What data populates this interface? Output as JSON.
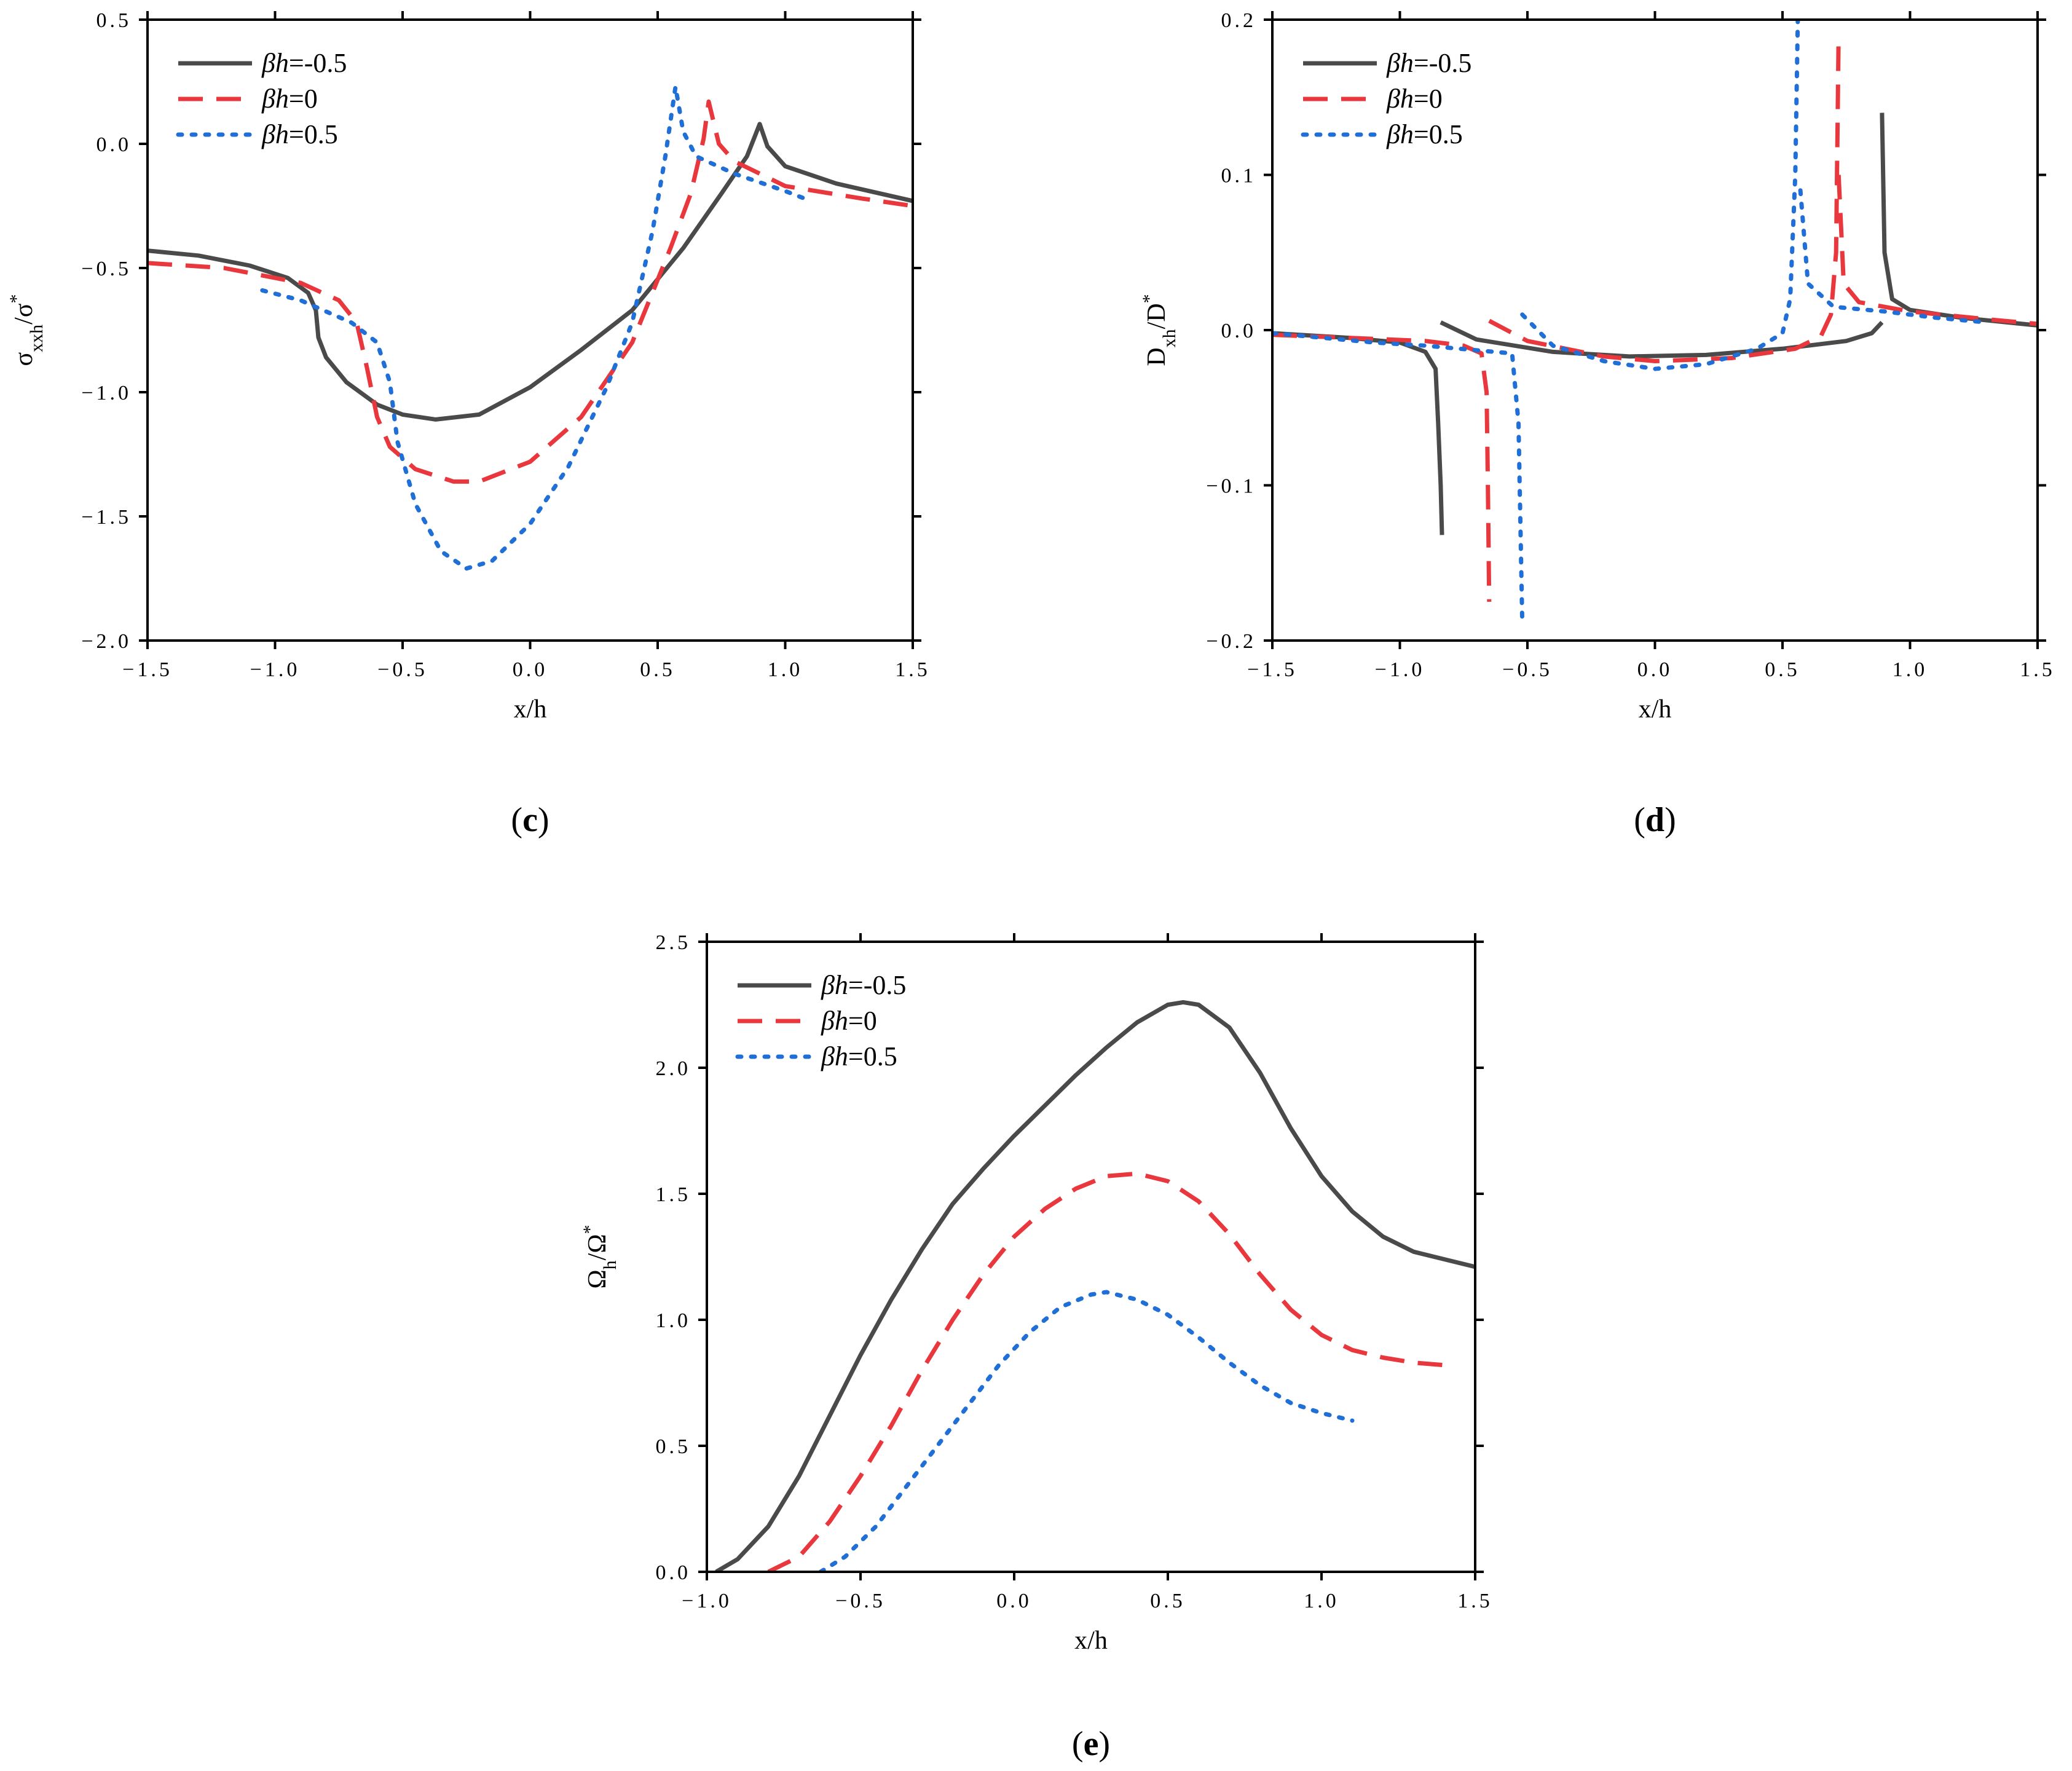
{
  "legend_labels": [
    "βh=-0.5",
    "βh=0",
    "βh=0.5"
  ],
  "colors": {
    "solid": "#4a4a4a",
    "dash": "#e8373d",
    "dot": "#1f6fd6"
  },
  "chart_data": [
    {
      "id": "c",
      "panel_label": "(c)",
      "type": "line",
      "xlabel": "x/h",
      "ylabel": "σxxh/σ*",
      "xlim": [
        -1.5,
        1.5
      ],
      "ylim": [
        -2.0,
        0.5
      ],
      "xticks": [
        -1.5,
        -1.0,
        -0.5,
        0.0,
        0.5,
        1.0,
        1.5
      ],
      "yticks": [
        -2.0,
        -1.5,
        -1.0,
        -0.5,
        0.0,
        0.5
      ],
      "xtick_labels": [
        "−1.5",
        "−1.0",
        "−0.5",
        "0.0",
        "0.5",
        "1.0",
        "1.5"
      ],
      "ytick_labels": [
        "−2.0",
        "−1.5",
        "−1.0",
        "−0.5",
        "0.0",
        "0.5"
      ],
      "series": [
        {
          "name": "βh=-0.5",
          "style": "solid",
          "points": [
            [
              -1.5,
              -0.43
            ],
            [
              -1.3,
              -0.45
            ],
            [
              -1.1,
              -0.49
            ],
            [
              -0.95,
              -0.54
            ],
            [
              -0.87,
              -0.6
            ],
            [
              -0.84,
              -0.67
            ],
            [
              -0.83,
              -0.78
            ],
            [
              -0.8,
              -0.86
            ],
            [
              -0.72,
              -0.96
            ],
            [
              -0.6,
              -1.05
            ],
            [
              -0.5,
              -1.09
            ],
            [
              -0.37,
              -1.11
            ],
            [
              -0.2,
              -1.09
            ],
            [
              0.0,
              -0.98
            ],
            [
              0.2,
              -0.83
            ],
            [
              0.4,
              -0.67
            ],
            [
              0.6,
              -0.42
            ],
            [
              0.75,
              -0.2
            ],
            [
              0.85,
              -0.05
            ],
            [
              0.9,
              0.08
            ],
            [
              0.93,
              -0.01
            ],
            [
              1.0,
              -0.09
            ],
            [
              1.2,
              -0.16
            ],
            [
              1.5,
              -0.23
            ]
          ]
        },
        {
          "name": "βh=0",
          "style": "dash",
          "points": [
            [
              -1.5,
              -0.48
            ],
            [
              -1.2,
              -0.5
            ],
            [
              -0.9,
              -0.56
            ],
            [
              -0.75,
              -0.63
            ],
            [
              -0.68,
              -0.72
            ],
            [
              -0.64,
              -0.9
            ],
            [
              -0.6,
              -1.1
            ],
            [
              -0.55,
              -1.22
            ],
            [
              -0.45,
              -1.31
            ],
            [
              -0.3,
              -1.36
            ],
            [
              -0.2,
              -1.36
            ],
            [
              0.0,
              -1.28
            ],
            [
              0.2,
              -1.1
            ],
            [
              0.4,
              -0.8
            ],
            [
              0.55,
              -0.42
            ],
            [
              0.63,
              -0.2
            ],
            [
              0.68,
              0.02
            ],
            [
              0.7,
              0.17
            ],
            [
              0.74,
              0.0
            ],
            [
              0.8,
              -0.07
            ],
            [
              1.0,
              -0.17
            ],
            [
              1.3,
              -0.22
            ],
            [
              1.5,
              -0.25
            ]
          ]
        },
        {
          "name": "βh=0.5",
          "style": "dot",
          "points": [
            [
              -1.05,
              -0.59
            ],
            [
              -0.9,
              -0.63
            ],
            [
              -0.7,
              -0.72
            ],
            [
              -0.6,
              -0.8
            ],
            [
              -0.55,
              -0.96
            ],
            [
              -0.52,
              -1.2
            ],
            [
              -0.45,
              -1.45
            ],
            [
              -0.35,
              -1.64
            ],
            [
              -0.25,
              -1.71
            ],
            [
              -0.15,
              -1.68
            ],
            [
              0.0,
              -1.53
            ],
            [
              0.15,
              -1.3
            ],
            [
              0.3,
              -0.98
            ],
            [
              0.4,
              -0.72
            ],
            [
              0.48,
              -0.35
            ],
            [
              0.53,
              -0.05
            ],
            [
              0.57,
              0.23
            ],
            [
              0.6,
              0.05
            ],
            [
              0.65,
              -0.05
            ],
            [
              0.8,
              -0.12
            ],
            [
              1.0,
              -0.19
            ],
            [
              1.1,
              -0.23
            ]
          ]
        }
      ]
    },
    {
      "id": "d",
      "panel_label": "(d)",
      "type": "line",
      "xlabel": "x/h",
      "ylabel": "Dxh/D*",
      "xlim": [
        -1.5,
        1.5
      ],
      "ylim": [
        -0.2,
        0.2
      ],
      "xticks": [
        -1.5,
        -1.0,
        -0.5,
        0.0,
        0.5,
        1.0,
        1.5
      ],
      "yticks": [
        -0.2,
        -0.1,
        0.0,
        0.1,
        0.2
      ],
      "xtick_labels": [
        "−1.5",
        "−1.0",
        "−0.5",
        "0.0",
        "0.5",
        "1.0",
        "1.5"
      ],
      "ytick_labels": [
        "−0.2",
        "−0.1",
        "0.0",
        "0.1",
        "0.2"
      ],
      "series": [
        {
          "name": "βh=-0.5",
          "style": "solid",
          "points": [
            [
              -1.5,
              -0.002
            ],
            [
              -1.2,
              -0.005
            ],
            [
              -1.0,
              -0.008
            ],
            [
              -0.9,
              -0.014
            ],
            [
              -0.86,
              -0.025
            ],
            [
              -0.85,
              -0.06
            ],
            [
              -0.84,
              -0.1
            ],
            [
              -0.835,
              -0.132
            ],
            null,
            [
              -0.84,
              0.005
            ],
            [
              -0.7,
              -0.006
            ],
            [
              -0.4,
              -0.014
            ],
            [
              -0.1,
              -0.017
            ],
            [
              0.2,
              -0.016
            ],
            [
              0.5,
              -0.012
            ],
            [
              0.75,
              -0.007
            ],
            [
              0.85,
              -0.002
            ],
            [
              0.89,
              0.005
            ],
            null,
            [
              0.89,
              0.14
            ],
            [
              0.9,
              0.05
            ],
            [
              0.93,
              0.02
            ],
            [
              1.0,
              0.013
            ],
            [
              1.2,
              0.008
            ],
            [
              1.5,
              0.003
            ]
          ]
        },
        {
          "name": "βh=0",
          "style": "dash",
          "points": [
            [
              -1.5,
              -0.003
            ],
            [
              -1.2,
              -0.005
            ],
            [
              -0.9,
              -0.007
            ],
            [
              -0.75,
              -0.01
            ],
            [
              -0.68,
              -0.015
            ],
            [
              -0.66,
              -0.04
            ],
            [
              -0.655,
              -0.1
            ],
            [
              -0.65,
              -0.175
            ],
            null,
            [
              -0.65,
              0.006
            ],
            [
              -0.5,
              -0.007
            ],
            [
              -0.2,
              -0.017
            ],
            [
              0.0,
              -0.02
            ],
            [
              0.3,
              -0.018
            ],
            [
              0.55,
              -0.012
            ],
            [
              0.65,
              -0.004
            ],
            [
              0.69,
              0.01
            ],
            [
              0.71,
              0.05
            ],
            [
              0.72,
              0.19
            ],
            null,
            [
              0.72,
              0.1
            ],
            [
              0.74,
              0.03
            ],
            [
              0.8,
              0.018
            ],
            [
              1.0,
              0.012
            ],
            [
              1.3,
              0.007
            ],
            [
              1.5,
              0.004
            ]
          ]
        },
        {
          "name": "βh=0.5",
          "style": "dot",
          "points": [
            [
              -1.5,
              -0.002
            ],
            [
              -1.1,
              -0.008
            ],
            [
              -0.9,
              -0.01
            ],
            [
              -0.7,
              -0.013
            ],
            [
              -0.56,
              -0.015
            ],
            [
              -0.535,
              -0.06
            ],
            [
              -0.52,
              -0.19
            ],
            null,
            [
              -0.52,
              0.01
            ],
            [
              -0.4,
              -0.01
            ],
            [
              -0.2,
              -0.02
            ],
            [
              0.0,
              -0.025
            ],
            [
              0.2,
              -0.022
            ],
            [
              0.4,
              -0.012
            ],
            [
              0.5,
              -0.002
            ],
            [
              0.53,
              0.02
            ],
            [
              0.55,
              0.1
            ],
            [
              0.56,
              0.2
            ],
            null,
            [
              0.57,
              0.09
            ],
            [
              0.6,
              0.03
            ],
            [
              0.7,
              0.015
            ],
            [
              0.9,
              0.012
            ],
            [
              1.1,
              0.008
            ],
            [
              1.3,
              0.005
            ]
          ]
        }
      ]
    },
    {
      "id": "e",
      "panel_label": "(e)",
      "type": "line",
      "xlabel": "x/h",
      "ylabel": "Ωh/Ω*",
      "xlim": [
        -1.0,
        1.5
      ],
      "ylim": [
        0.0,
        2.5
      ],
      "xticks": [
        -1.0,
        -0.5,
        0.0,
        0.5,
        1.0,
        1.5
      ],
      "yticks": [
        0.0,
        0.5,
        1.0,
        1.5,
        2.0,
        2.5
      ],
      "xtick_labels": [
        "−1.0",
        "−0.5",
        "0.0",
        "0.5",
        "1.0",
        "1.5"
      ],
      "ytick_labels": [
        "0.0",
        "0.5",
        "1.0",
        "1.5",
        "2.0",
        "2.5"
      ],
      "series": [
        {
          "name": "βh=-0.5",
          "style": "solid",
          "points": [
            [
              -0.97,
              0.0
            ],
            [
              -0.9,
              0.05
            ],
            [
              -0.8,
              0.18
            ],
            [
              -0.7,
              0.38
            ],
            [
              -0.6,
              0.62
            ],
            [
              -0.5,
              0.86
            ],
            [
              -0.4,
              1.08
            ],
            [
              -0.3,
              1.28
            ],
            [
              -0.2,
              1.46
            ],
            [
              -0.1,
              1.6
            ],
            [
              0.0,
              1.73
            ],
            [
              0.1,
              1.85
            ],
            [
              0.2,
              1.97
            ],
            [
              0.3,
              2.08
            ],
            [
              0.4,
              2.18
            ],
            [
              0.5,
              2.25
            ],
            [
              0.55,
              2.26
            ],
            [
              0.6,
              2.25
            ],
            [
              0.7,
              2.16
            ],
            [
              0.8,
              1.98
            ],
            [
              0.9,
              1.76
            ],
            [
              1.0,
              1.57
            ],
            [
              1.1,
              1.43
            ],
            [
              1.2,
              1.33
            ],
            [
              1.3,
              1.27
            ],
            [
              1.4,
              1.24
            ],
            [
              1.5,
              1.21
            ]
          ]
        },
        {
          "name": "βh=0",
          "style": "dash",
          "points": [
            [
              -0.8,
              0.0
            ],
            [
              -0.7,
              0.06
            ],
            [
              -0.6,
              0.2
            ],
            [
              -0.5,
              0.38
            ],
            [
              -0.4,
              0.58
            ],
            [
              -0.3,
              0.8
            ],
            [
              -0.2,
              1.0
            ],
            [
              -0.1,
              1.18
            ],
            [
              0.0,
              1.33
            ],
            [
              0.1,
              1.44
            ],
            [
              0.2,
              1.52
            ],
            [
              0.3,
              1.57
            ],
            [
              0.4,
              1.58
            ],
            [
              0.5,
              1.55
            ],
            [
              0.6,
              1.47
            ],
            [
              0.7,
              1.34
            ],
            [
              0.8,
              1.18
            ],
            [
              0.9,
              1.04
            ],
            [
              1.0,
              0.94
            ],
            [
              1.1,
              0.88
            ],
            [
              1.2,
              0.85
            ],
            [
              1.3,
              0.83
            ],
            [
              1.4,
              0.82
            ]
          ]
        },
        {
          "name": "βh=0.5",
          "style": "dot",
          "points": [
            [
              -0.63,
              0.0
            ],
            [
              -0.55,
              0.06
            ],
            [
              -0.45,
              0.18
            ],
            [
              -0.35,
              0.34
            ],
            [
              -0.25,
              0.5
            ],
            [
              -0.15,
              0.66
            ],
            [
              -0.05,
              0.82
            ],
            [
              0.05,
              0.95
            ],
            [
              0.15,
              1.05
            ],
            [
              0.25,
              1.1
            ],
            [
              0.3,
              1.11
            ],
            [
              0.4,
              1.08
            ],
            [
              0.5,
              1.02
            ],
            [
              0.6,
              0.93
            ],
            [
              0.7,
              0.83
            ],
            [
              0.8,
              0.74
            ],
            [
              0.9,
              0.67
            ],
            [
              1.0,
              0.63
            ],
            [
              1.1,
              0.6
            ]
          ]
        }
      ]
    }
  ]
}
